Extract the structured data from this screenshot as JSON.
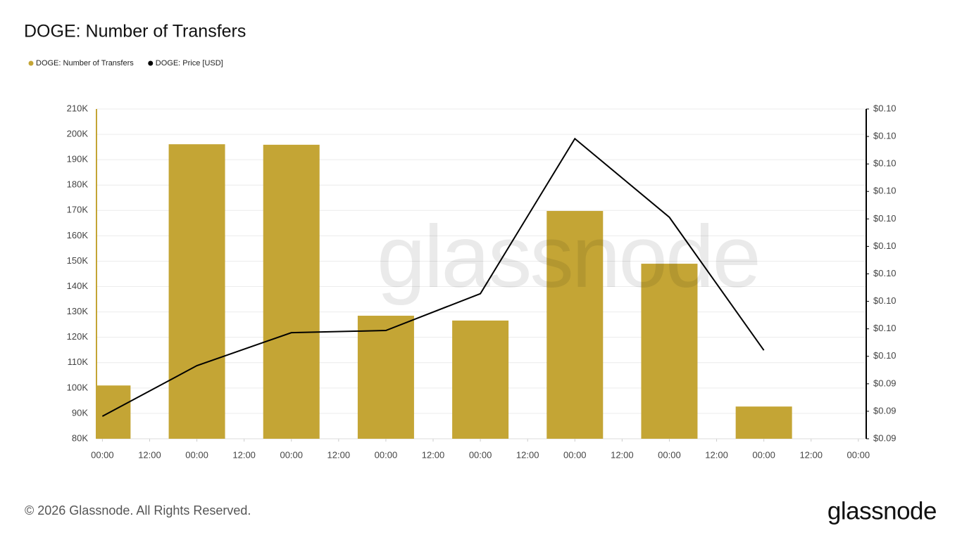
{
  "chart_data": {
    "type": "bar",
    "title": "DOGE: Number of Transfers",
    "x": [
      0,
      24,
      48,
      72,
      96,
      120,
      144,
      168
    ],
    "xlim": [
      -1.5,
      194
    ],
    "xticks": [
      {
        "value": 0,
        "label": "00:00"
      },
      {
        "value": 12,
        "label": "12:00"
      },
      {
        "value": 24,
        "label": "00:00"
      },
      {
        "value": 36,
        "label": "12:00"
      },
      {
        "value": 48,
        "label": "00:00"
      },
      {
        "value": 60,
        "label": "12:00"
      },
      {
        "value": 72,
        "label": "00:00"
      },
      {
        "value": 84,
        "label": "12:00"
      },
      {
        "value": 96,
        "label": "00:00"
      },
      {
        "value": 108,
        "label": "12:00"
      },
      {
        "value": 120,
        "label": "00:00"
      },
      {
        "value": 132,
        "label": "12:00"
      },
      {
        "value": 144,
        "label": "00:00"
      },
      {
        "value": 156,
        "label": "12:00"
      },
      {
        "value": 168,
        "label": "00:00"
      },
      {
        "value": 180,
        "label": "12:00"
      },
      {
        "value": 192,
        "label": "00:00"
      }
    ],
    "ylim": [
      80000,
      210000
    ],
    "yticks": [
      {
        "value": 80000,
        "label": "80K"
      },
      {
        "value": 90000,
        "label": "90K"
      },
      {
        "value": 100000,
        "label": "100K"
      },
      {
        "value": 110000,
        "label": "110K"
      },
      {
        "value": 120000,
        "label": "120K"
      },
      {
        "value": 130000,
        "label": "130K"
      },
      {
        "value": 140000,
        "label": "140K"
      },
      {
        "value": 150000,
        "label": "150K"
      },
      {
        "value": 160000,
        "label": "160K"
      },
      {
        "value": 170000,
        "label": "170K"
      },
      {
        "value": 180000,
        "label": "180K"
      },
      {
        "value": 190000,
        "label": "190K"
      },
      {
        "value": 200000,
        "label": "200K"
      },
      {
        "value": 210000,
        "label": "210K"
      }
    ],
    "y2lim": [
      0.0937,
      0.0997
    ],
    "y2ticks": [
      {
        "value": 0.0937,
        "label": "$0.09"
      },
      {
        "value": 0.0942,
        "label": "$0.09"
      },
      {
        "value": 0.0947,
        "label": "$0.09"
      },
      {
        "value": 0.0952,
        "label": "$0.10"
      },
      {
        "value": 0.0957,
        "label": "$0.10"
      },
      {
        "value": 0.0962,
        "label": "$0.10"
      },
      {
        "value": 0.0967,
        "label": "$0.10"
      },
      {
        "value": 0.0972,
        "label": "$0.10"
      },
      {
        "value": 0.0977,
        "label": "$0.10"
      },
      {
        "value": 0.0982,
        "label": "$0.10"
      },
      {
        "value": 0.0987,
        "label": "$0.10"
      },
      {
        "value": 0.0992,
        "label": "$0.10"
      },
      {
        "value": 0.0997,
        "label": "$0.10"
      }
    ],
    "grid": true,
    "series": [
      {
        "name": "DOGE: Number of Transfers",
        "type": "bar",
        "color": "#c4a535",
        "values": [
          101000,
          196100,
          195900,
          128500,
          126600,
          169800,
          149000,
          92700
        ]
      },
      {
        "name": "DOGE: Price [USD]",
        "type": "line",
        "axis": "y2",
        "color": "#000000",
        "values": [
          0.09411,
          0.09503,
          0.09563,
          0.09567,
          0.09634,
          0.09916,
          0.09773,
          0.09531
        ]
      }
    ],
    "watermark": "glassnode",
    "footer": "© 2026 Glassnode. All Rights Reserved.",
    "logo": "glassnode"
  }
}
